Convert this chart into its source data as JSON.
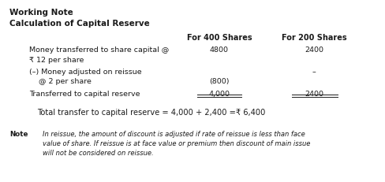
{
  "title1": "Working Note",
  "title2": "Calculation of Capital Reserve",
  "col_header1": "For 400 Shares",
  "col_header2": "For 200 Shares",
  "row0_label1": "Money transferred to share capital @",
  "row0_label2": "₹ 12 per share",
  "row0_val1": "4800",
  "row0_val2": "2400",
  "row1_label1": "(–) Money adjusted on reissue",
  "row1_label2": "    @ 2 per share",
  "row1_val1": "(800)",
  "row1_val2": "–",
  "row2_label": "Transferred to capital reserve",
  "row2_val1": "4,000",
  "row2_val2": "2400",
  "total_line1": "Total transfer to capital reserve = 4,000 + 2,400 =",
  "total_rupee": "₹",
  "total_line2": " 6,400",
  "note_label": "Note",
  "note_text": "In reissue, the amount of discount is adjusted if rate of reissue is less than face\nvalue of share. If reissue is at face value or premium then discount of main issue\nwill not be considered on reissue.",
  "bg_color": "#ffffff",
  "text_color": "#1a1a1a",
  "dpi": 100,
  "fig_w": 4.89,
  "fig_h": 2.31
}
